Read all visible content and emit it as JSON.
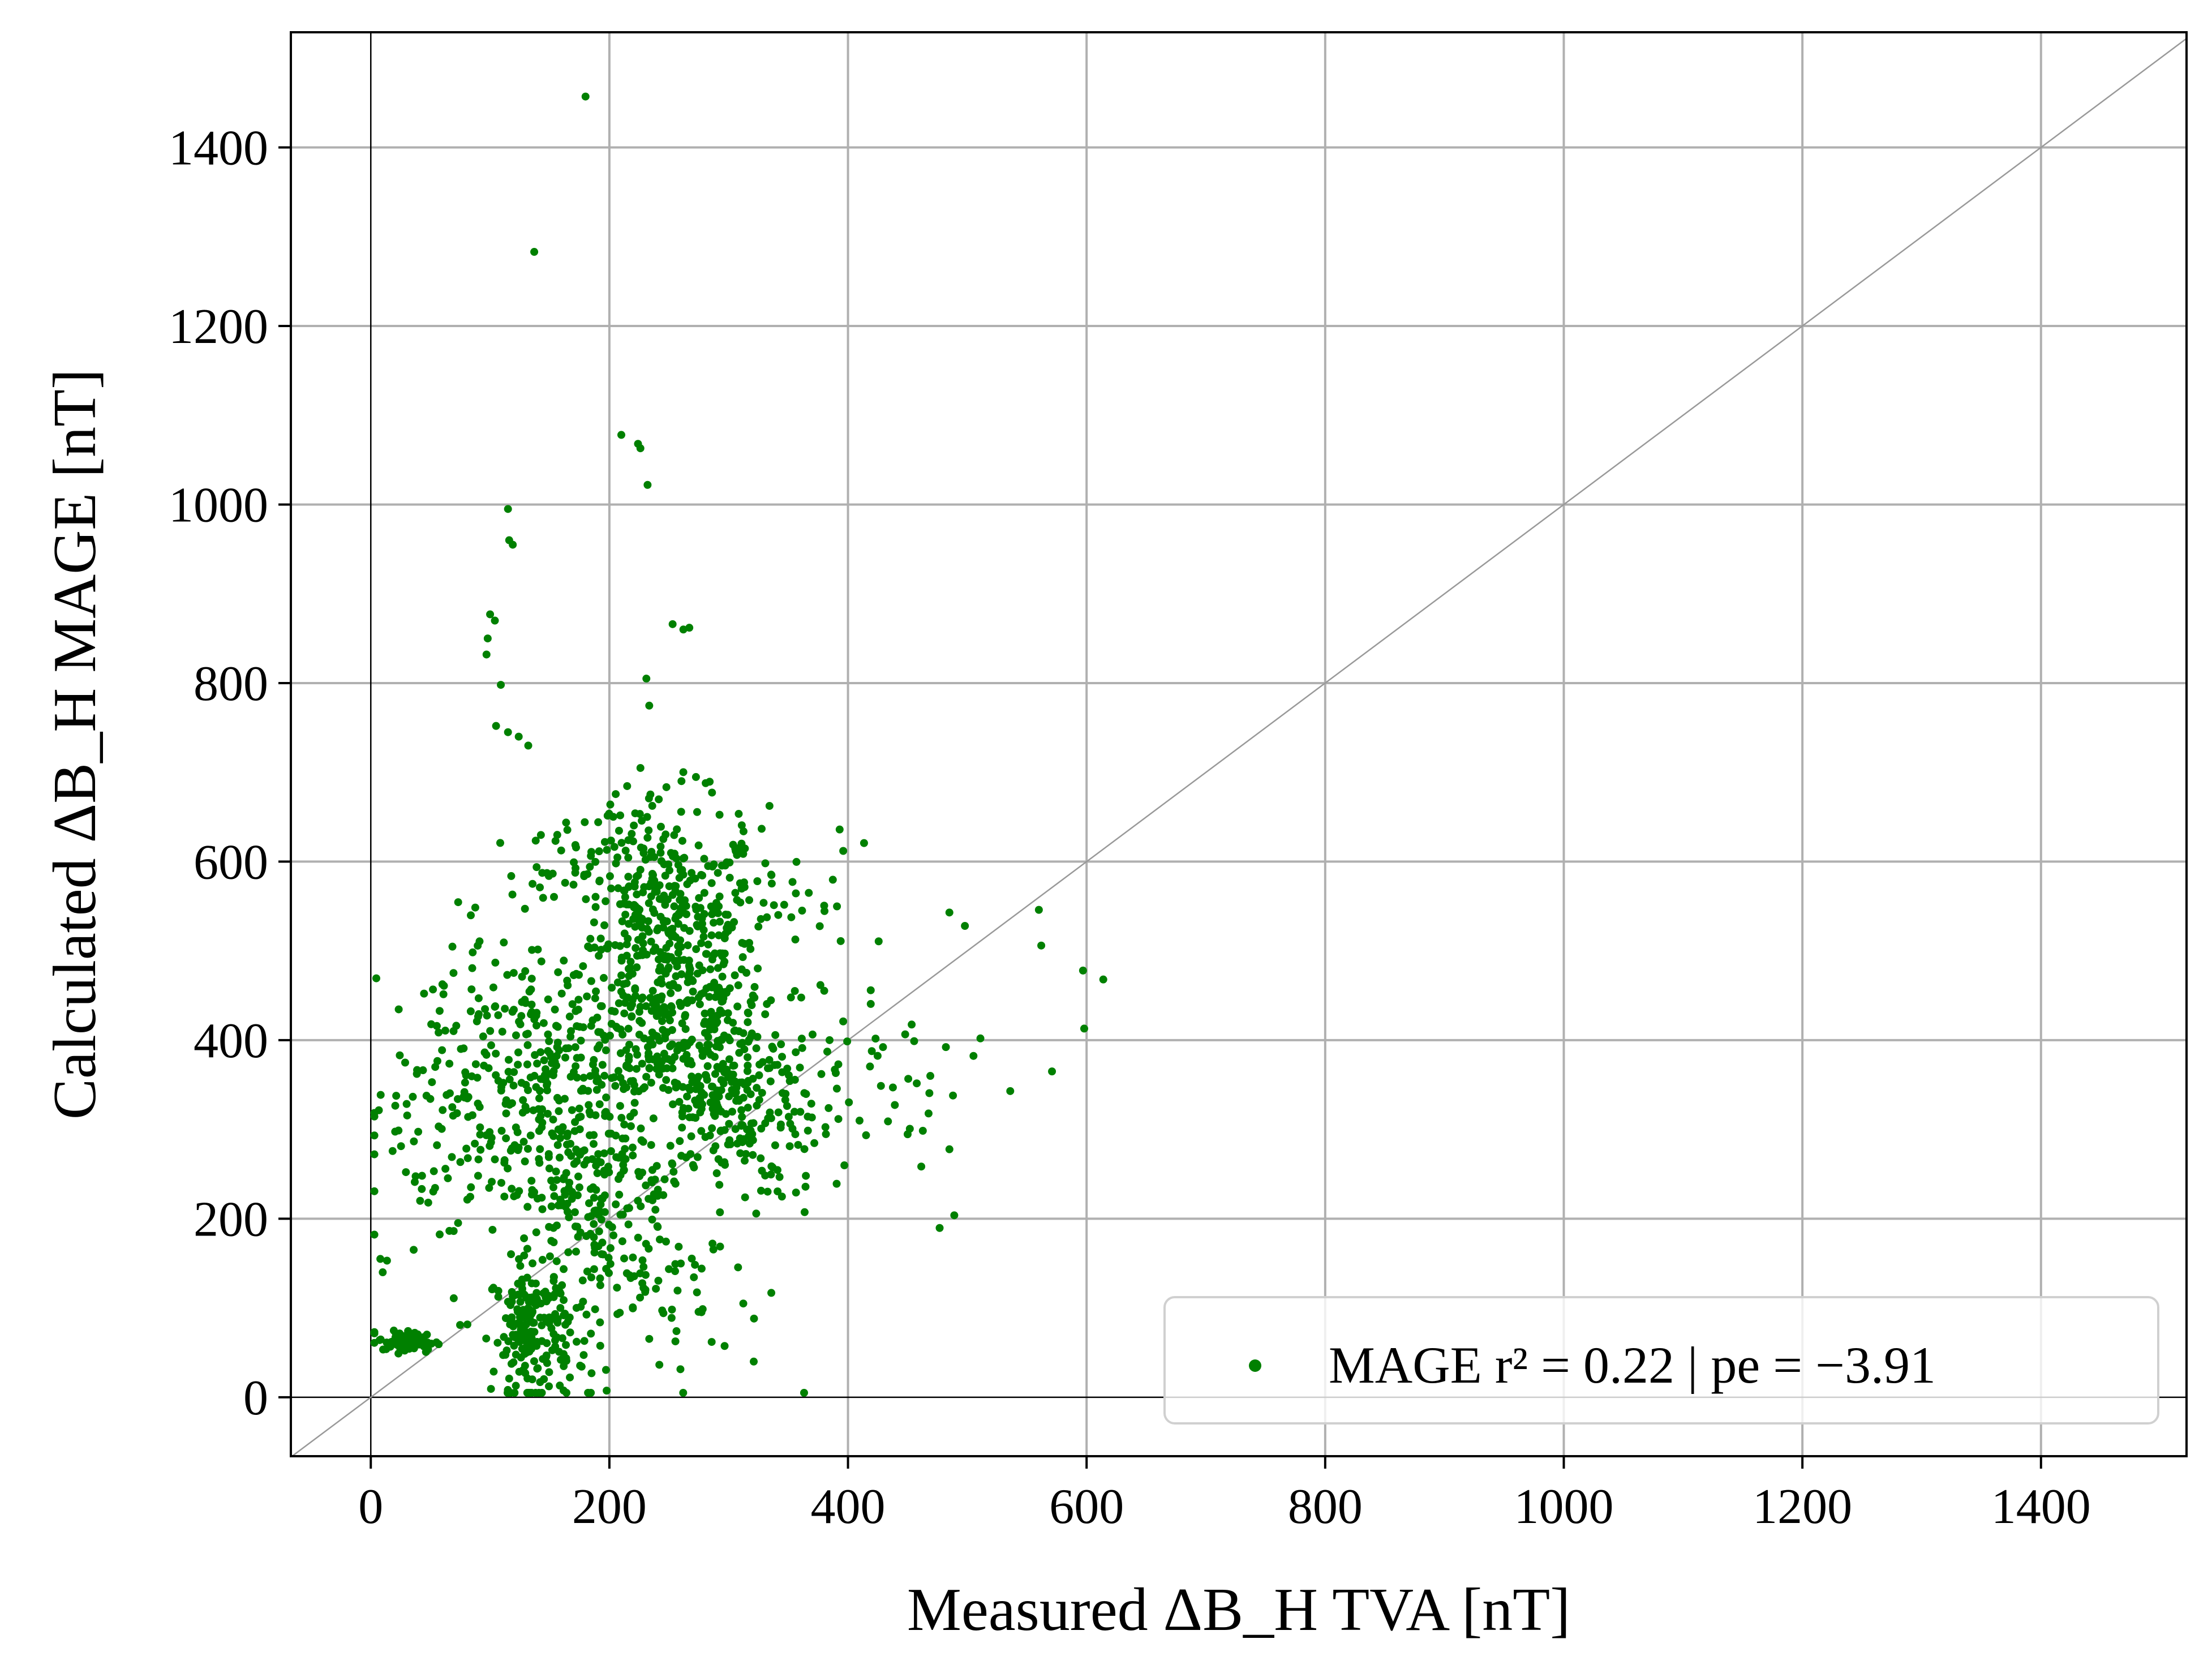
{
  "chart_data": {
    "type": "scatter",
    "xlabel": "Measured ΔB_H TVA [nT]",
    "ylabel": "Calculated ΔB_H MAGE [nT]",
    "xlim": [
      -67,
      1522
    ],
    "ylim": [
      -66,
      1529
    ],
    "xticks": [
      "0",
      "200",
      "400",
      "600",
      "800",
      "1000",
      "1200",
      "1400"
    ],
    "yticks": [
      "0",
      "200",
      "400",
      "600",
      "800",
      "1000",
      "1200",
      "1400"
    ],
    "grid": true,
    "identity_line": true,
    "legend_position": "lower-right",
    "point_color": "#008000",
    "series": [
      {
        "name": "MAGE r² = 0.22 | pe = −3.91",
        "legend_label": "MAGE r² = 0.22 | pe = −3.91",
        "points_note": "approximately 2000 points; only the outliers are read individually",
        "outliers": [
          [
            180,
            1457
          ],
          [
            137,
            1283
          ],
          [
            210,
            1078
          ],
          [
            224,
            1068
          ],
          [
            226,
            1063
          ],
          [
            232,
            1022
          ],
          [
            115,
            995
          ],
          [
            116,
            960
          ],
          [
            119,
            955
          ],
          [
            100,
            877
          ],
          [
            104,
            870
          ],
          [
            98,
            850
          ],
          [
            97,
            832
          ],
          [
            109,
            798
          ],
          [
            253,
            866
          ],
          [
            262,
            860
          ],
          [
            267,
            862
          ],
          [
            231,
            805
          ],
          [
            105,
            752
          ],
          [
            115,
            745
          ],
          [
            124,
            740
          ],
          [
            132,
            730
          ],
          [
            393,
            636
          ],
          [
            396,
            612
          ],
          [
            614,
            468
          ],
          [
            597,
            478
          ],
          [
            598,
            413
          ],
          [
            571,
            365
          ],
          [
            536,
            343
          ],
          [
            560,
            546
          ],
          [
            562,
            506
          ],
          [
            511,
            402
          ],
          [
            488,
            338
          ],
          [
            485,
            543
          ],
          [
            498,
            528
          ],
          [
            469,
            360
          ],
          [
            8,
            155
          ],
          [
            10,
            140
          ],
          [
            321,
            40
          ]
        ],
        "clusters": [
          {
            "cx": 250,
            "cy": 480,
            "sx": 38,
            "sy": 90,
            "n": 520
          },
          {
            "cx": 300,
            "cy": 340,
            "sx": 38,
            "sy": 60,
            "n": 280
          },
          {
            "cx": 180,
            "cy": 230,
            "sx": 35,
            "sy": 85,
            "n": 270
          },
          {
            "cx": 135,
            "cy": 75,
            "sx": 16,
            "sy": 38,
            "n": 190
          },
          {
            "cx": 140,
            "cy": 380,
            "sx": 45,
            "sy": 70,
            "n": 180
          },
          {
            "cx": 65,
            "cy": 320,
            "sx": 35,
            "sy": 90,
            "n": 120
          },
          {
            "cx": 30,
            "cy": 62,
            "sx": 12,
            "sy": 6,
            "n": 70
          },
          {
            "cx": 200,
            "cy": 600,
            "sx": 35,
            "sy": 40,
            "n": 80
          },
          {
            "cx": 420,
            "cy": 360,
            "sx": 50,
            "sy": 90,
            "n": 45
          },
          {
            "cx": 250,
            "cy": 130,
            "sx": 40,
            "sy": 60,
            "n": 60
          },
          {
            "cx": 330,
            "cy": 560,
            "sx": 35,
            "sy": 60,
            "n": 50
          }
        ]
      }
    ]
  }
}
